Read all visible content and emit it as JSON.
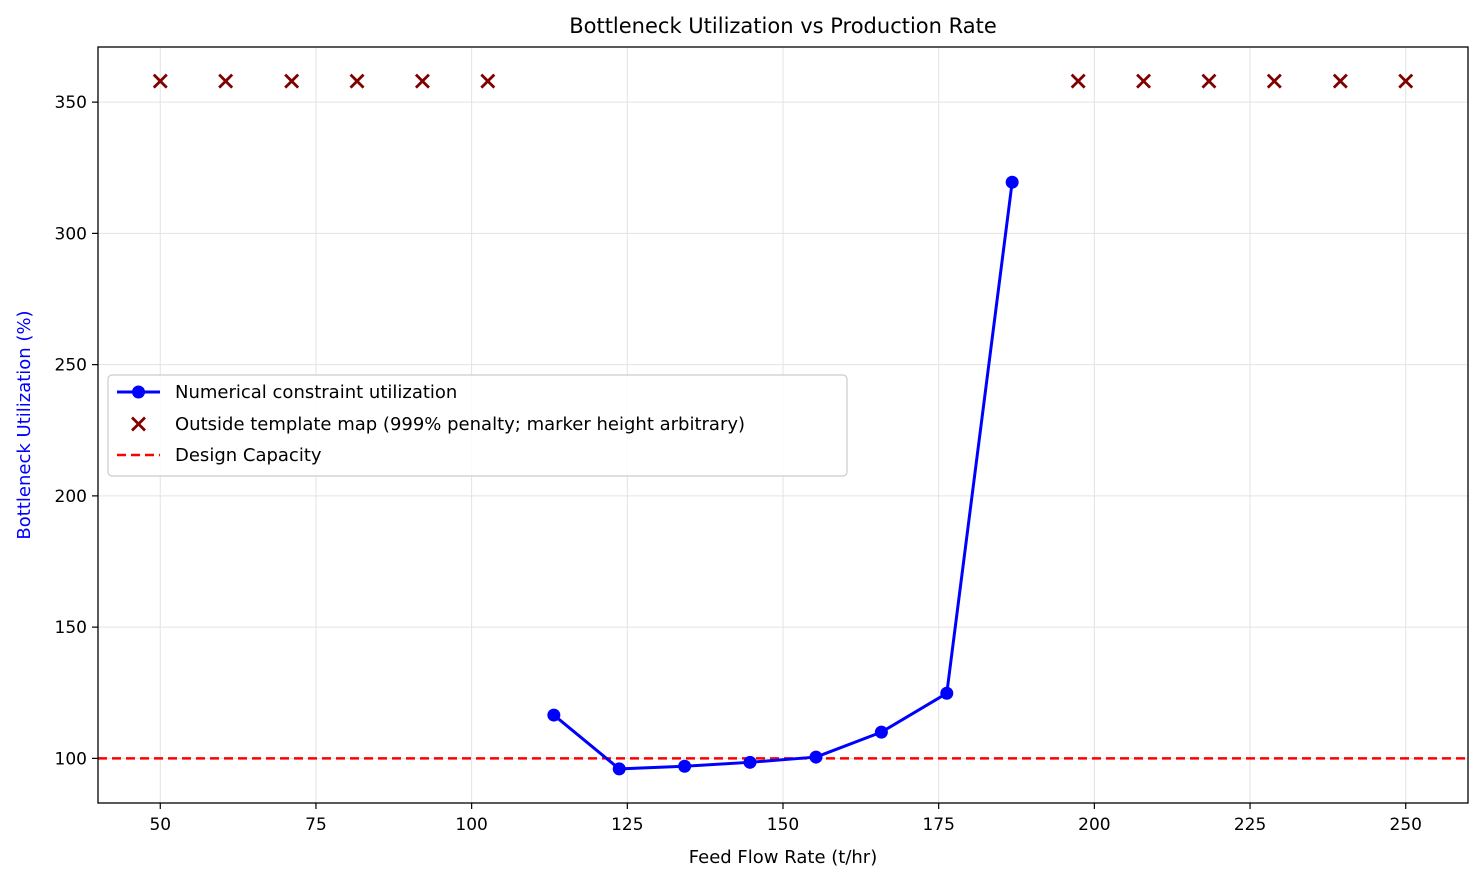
{
  "chart_data": {
    "type": "line",
    "title": "Bottleneck Utilization vs Production Rate",
    "xlabel": "Feed Flow Rate (t/hr)",
    "ylabel": "Bottleneck Utilization (%)",
    "ylabel_color": "#0000ff",
    "xlim": [
      40,
      260
    ],
    "ylim": [
      83,
      371
    ],
    "xticks": [
      50,
      75,
      100,
      125,
      150,
      175,
      200,
      225,
      250
    ],
    "yticks": [
      100,
      150,
      200,
      250,
      300,
      350
    ],
    "grid": true,
    "legend_position": "center-left",
    "series": [
      {
        "name": "Numerical constraint utilization",
        "kind": "line-marker",
        "color": "#0000ff",
        "x": [
          113.2,
          123.7,
          134.2,
          144.7,
          155.3,
          165.8,
          176.3,
          186.8
        ],
        "y": [
          116.5,
          96.0,
          97.0,
          98.5,
          100.5,
          110.0,
          124.8,
          319.5
        ]
      },
      {
        "name": "Outside template map (999% penalty; marker height arbitrary)",
        "kind": "x-marker",
        "color": "#800000",
        "x": [
          50.0,
          60.5,
          71.1,
          81.6,
          92.1,
          102.6,
          197.4,
          207.9,
          218.4,
          228.9,
          239.5,
          250.0
        ],
        "y": [
          358,
          358,
          358,
          358,
          358,
          358,
          358,
          358,
          358,
          358,
          358,
          358
        ]
      },
      {
        "name": "Design Capacity",
        "kind": "hline",
        "color": "#ff0000",
        "y": 100
      }
    ]
  }
}
